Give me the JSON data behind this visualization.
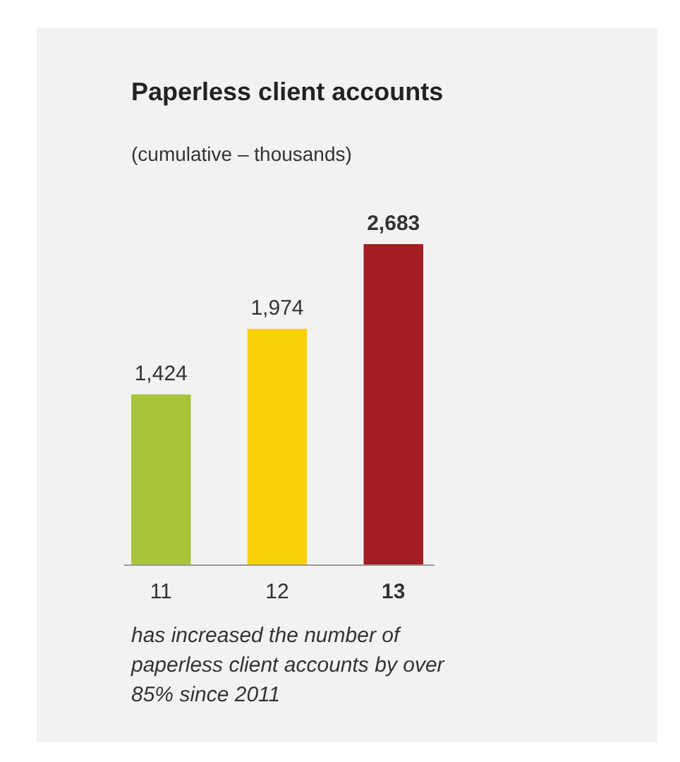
{
  "chart_data": {
    "type": "bar",
    "title": "Paperless client accounts",
    "subtitle": "(cumulative – thousands)",
    "categories": [
      "11",
      "12",
      "13"
    ],
    "values": [
      1424,
      1974,
      2683
    ],
    "colors": [
      "#a8c43a",
      "#f9d10a",
      "#a31d23"
    ],
    "value_labels": [
      "1,424",
      "1,974",
      "2,683"
    ],
    "annotations": [
      "has increased the number of paperless client accounts by over 85% since 2011"
    ]
  }
}
